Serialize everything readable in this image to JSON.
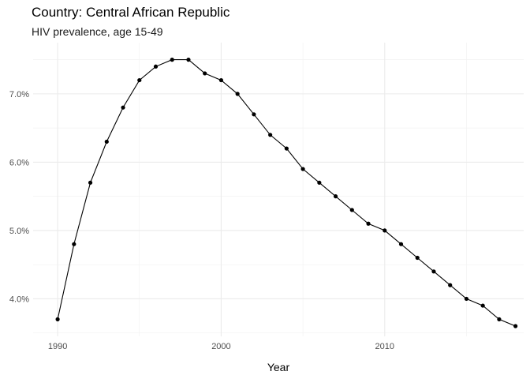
{
  "chart_data": {
    "type": "line",
    "title": "Country: Central African Republic",
    "subtitle": "HIV prevalence, age 15-49",
    "xlabel": "Year",
    "ylabel": "",
    "xlim": [
      1988.5,
      2018.5
    ],
    "ylim": [
      3.45,
      7.75
    ],
    "x_ticks": [
      1990,
      2000,
      2010
    ],
    "x_tick_labels": [
      "1990",
      "2000",
      "2010"
    ],
    "y_ticks": [
      4,
      5,
      6,
      7
    ],
    "y_tick_labels": [
      "4.0%",
      "5.0%",
      "6.0%",
      "7.0%"
    ],
    "grid": true,
    "legend": "none",
    "series": [
      {
        "color": "#000000",
        "x": [
          1990,
          1991,
          1992,
          1993,
          1994,
          1995,
          1996,
          1997,
          1998,
          1999,
          2000,
          2001,
          2002,
          2003,
          2004,
          2005,
          2006,
          2007,
          2008,
          2009,
          2010,
          2011,
          2012,
          2013,
          2014,
          2015,
          2016,
          2017,
          2018
        ],
        "y": [
          3.7,
          4.8,
          5.7,
          6.3,
          6.8,
          7.2,
          7.4,
          7.5,
          7.5,
          7.3,
          7.2,
          7.0,
          6.7,
          6.4,
          6.2,
          5.9,
          5.7,
          5.5,
          5.3,
          5.1,
          5.0,
          4.8,
          4.6,
          4.4,
          4.2,
          4.0,
          3.9,
          3.7,
          3.6
        ]
      }
    ]
  }
}
